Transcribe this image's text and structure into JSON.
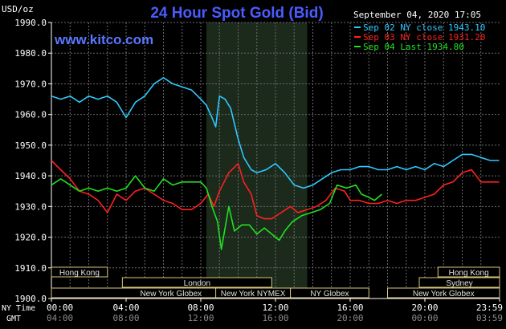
{
  "title": "24 Hour Spot Gold (Bid)",
  "website": "www.kitco.com",
  "timestamp": "September 04, 2020 17:05",
  "y_unit": "USD/oz",
  "legend": [
    {
      "text": "Sep 02 NY close 1943.10",
      "color": "#2ec8ff"
    },
    {
      "text": "Sep 03 NY close 1931.20",
      "color": "#ff2020"
    },
    {
      "text": "Sep 04 Last 1934.80",
      "color": "#20e020"
    }
  ],
  "x_row_labels": {
    "ny": "NY Time",
    "gmt": "GMT"
  },
  "x_ticks_ny": [
    "00:00",
    "04:00",
    "08:00",
    "12:00",
    "16:00",
    "20:00",
    "23:59"
  ],
  "x_ticks_gmt": [
    "04:00",
    "08:00",
    "12:00",
    "16:00",
    "20:00",
    "00:00",
    "03:59"
  ],
  "y_tick_labels": [
    "1900.0",
    "1910.0",
    "1920.0",
    "1930.0",
    "1940.0",
    "1950.0",
    "1960.0",
    "1970.0",
    "1980.0",
    "1990.0"
  ],
  "sessions": [
    {
      "name": "Hong Kong",
      "start": 0,
      "end": 3,
      "row": 0
    },
    {
      "name": "Hong Kong",
      "start": 20.7,
      "end": 24,
      "row": 0
    },
    {
      "name": "London",
      "start": 3.8,
      "end": 11.8,
      "row": 1
    },
    {
      "name": "Sydney",
      "start": 19.7,
      "end": 24,
      "row": 1
    },
    {
      "name": "New York Globex",
      "start": 0,
      "end": 12.8,
      "row": 2
    },
    {
      "name": "New York NYMEX",
      "start": 8.8,
      "end": 12.8,
      "row": 2
    },
    {
      "name": "NY Globex",
      "start": 12.8,
      "end": 17,
      "row": 2
    },
    {
      "name": "New York Globex",
      "start": 18,
      "end": 24,
      "row": 2
    }
  ],
  "chart_data": {
    "type": "line",
    "xlabel": "NY Time",
    "ylabel": "USD/oz",
    "xlim": [
      0,
      24
    ],
    "ylim": [
      1900,
      1990
    ],
    "grid": true,
    "legend_position": "top-right",
    "highlight_region": [
      8.3,
      13.7
    ],
    "series": [
      {
        "name": "Sep 02 NY close 1943.10",
        "color": "#2ec8ff",
        "points": [
          [
            0,
            1966
          ],
          [
            0.5,
            1965
          ],
          [
            1,
            1966
          ],
          [
            1.5,
            1964
          ],
          [
            2,
            1966
          ],
          [
            2.5,
            1965
          ],
          [
            3,
            1966
          ],
          [
            3.5,
            1964
          ],
          [
            4,
            1959
          ],
          [
            4.5,
            1964
          ],
          [
            5,
            1966
          ],
          [
            5.5,
            1970
          ],
          [
            6,
            1972
          ],
          [
            6.5,
            1970
          ],
          [
            7,
            1969
          ],
          [
            7.5,
            1968
          ],
          [
            8,
            1965
          ],
          [
            8.3,
            1963
          ],
          [
            8.6,
            1959
          ],
          [
            8.8,
            1956
          ],
          [
            9,
            1966
          ],
          [
            9.3,
            1965
          ],
          [
            9.6,
            1962
          ],
          [
            10,
            1952
          ],
          [
            10.3,
            1946
          ],
          [
            10.7,
            1942
          ],
          [
            11,
            1941
          ],
          [
            11.5,
            1942
          ],
          [
            12,
            1944
          ],
          [
            12.5,
            1941
          ],
          [
            13,
            1937
          ],
          [
            13.5,
            1936
          ],
          [
            14,
            1937
          ],
          [
            14.5,
            1939
          ],
          [
            15,
            1941
          ],
          [
            15.5,
            1942
          ],
          [
            16,
            1942
          ],
          [
            16.5,
            1943
          ],
          [
            17,
            1943
          ],
          [
            17.5,
            1942
          ],
          [
            18,
            1942
          ],
          [
            18.5,
            1943
          ],
          [
            19,
            1942
          ],
          [
            19.5,
            1943
          ],
          [
            20,
            1942
          ],
          [
            20.5,
            1944
          ],
          [
            21,
            1943
          ],
          [
            21.5,
            1945
          ],
          [
            22,
            1947
          ],
          [
            22.5,
            1947
          ],
          [
            23,
            1946
          ],
          [
            23.5,
            1945
          ],
          [
            23.98,
            1945
          ]
        ]
      },
      {
        "name": "Sep 03 NY close 1931.20",
        "color": "#ff2020",
        "points": [
          [
            0,
            1945
          ],
          [
            0.5,
            1942
          ],
          [
            1,
            1939
          ],
          [
            1.5,
            1935
          ],
          [
            2,
            1934
          ],
          [
            2.5,
            1932
          ],
          [
            3,
            1928
          ],
          [
            3.5,
            1934
          ],
          [
            4,
            1932
          ],
          [
            4.5,
            1935
          ],
          [
            5,
            1936
          ],
          [
            5.5,
            1934
          ],
          [
            6,
            1932
          ],
          [
            6.5,
            1931
          ],
          [
            7,
            1929
          ],
          [
            7.5,
            1929
          ],
          [
            8,
            1931
          ],
          [
            8.4,
            1934
          ],
          [
            8.7,
            1930
          ],
          [
            9,
            1935
          ],
          [
            9.5,
            1941
          ],
          [
            10,
            1944
          ],
          [
            10.3,
            1938
          ],
          [
            10.7,
            1934
          ],
          [
            11,
            1927
          ],
          [
            11.4,
            1926
          ],
          [
            11.8,
            1926
          ],
          [
            12.3,
            1928
          ],
          [
            12.8,
            1930
          ],
          [
            13.2,
            1928
          ],
          [
            13.7,
            1929
          ],
          [
            14.2,
            1930
          ],
          [
            14.7,
            1932
          ],
          [
            15.2,
            1936
          ],
          [
            15.7,
            1935
          ],
          [
            16,
            1932
          ],
          [
            16.5,
            1932
          ],
          [
            17,
            1931
          ],
          [
            17.5,
            1931
          ],
          [
            18,
            1932
          ],
          [
            18.5,
            1931
          ],
          [
            19,
            1932
          ],
          [
            19.5,
            1932
          ],
          [
            20,
            1933
          ],
          [
            20.5,
            1934
          ],
          [
            21,
            1937
          ],
          [
            21.5,
            1938
          ],
          [
            22,
            1941
          ],
          [
            22.5,
            1942
          ],
          [
            23,
            1938
          ],
          [
            23.5,
            1938
          ],
          [
            23.98,
            1938
          ]
        ]
      },
      {
        "name": "Sep 04 Last 1934.80",
        "color": "#20e020",
        "points": [
          [
            0,
            1937
          ],
          [
            0.5,
            1939
          ],
          [
            1,
            1937
          ],
          [
            1.5,
            1935
          ],
          [
            2,
            1936
          ],
          [
            2.5,
            1935
          ],
          [
            3,
            1936
          ],
          [
            3.5,
            1935
          ],
          [
            4,
            1936
          ],
          [
            4.5,
            1940
          ],
          [
            5,
            1936
          ],
          [
            5.5,
            1935
          ],
          [
            6,
            1939
          ],
          [
            6.5,
            1937
          ],
          [
            7,
            1938
          ],
          [
            7.5,
            1938
          ],
          [
            8,
            1938
          ],
          [
            8.3,
            1936
          ],
          [
            8.6,
            1930
          ],
          [
            8.9,
            1925
          ],
          [
            9.1,
            1916
          ],
          [
            9.5,
            1930
          ],
          [
            9.8,
            1922
          ],
          [
            10.2,
            1924
          ],
          [
            10.6,
            1924
          ],
          [
            11,
            1921
          ],
          [
            11.4,
            1923
          ],
          [
            11.8,
            1921
          ],
          [
            12.2,
            1919
          ],
          [
            12.5,
            1922
          ],
          [
            12.9,
            1925
          ],
          [
            13.4,
            1927
          ],
          [
            13.9,
            1928
          ],
          [
            14.4,
            1929
          ],
          [
            14.9,
            1931
          ],
          [
            15.3,
            1937
          ],
          [
            15.8,
            1936
          ],
          [
            16.3,
            1937
          ],
          [
            16.6,
            1934
          ],
          [
            17,
            1933
          ],
          [
            17.3,
            1932
          ],
          [
            17.7,
            1934
          ]
        ]
      }
    ]
  }
}
